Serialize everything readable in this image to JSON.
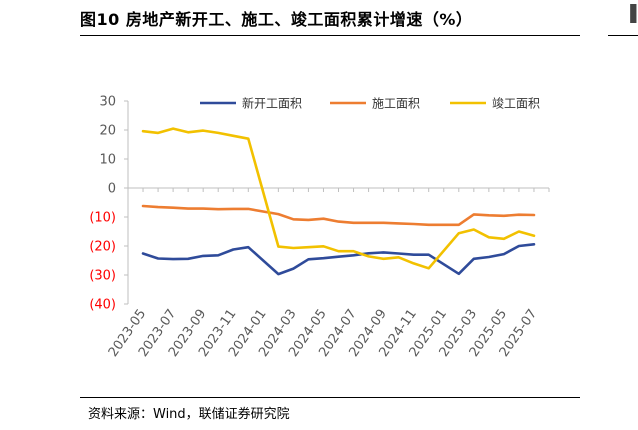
{
  "figure": {
    "title": "图10 房地产新开工、施工、竣工面积累计增速（%）",
    "source": "资料来源：Wind，联储证券研究院"
  },
  "chart_data": {
    "type": "line",
    "x": [
      "2023-05",
      "2023-06",
      "2023-07",
      "2023-08",
      "2023-09",
      "2023-10",
      "2023-11",
      "2023-12",
      "2024-02",
      "2024-03",
      "2024-04",
      "2024-05",
      "2024-06",
      "2024-07",
      "2024-08",
      "2024-09",
      "2024-10",
      "2024-11",
      "2024-12",
      "2025-02",
      "2025-03",
      "2025-04",
      "2025-05",
      "2025-06",
      "2025-07"
    ],
    "x_tick_labels": [
      "2023-05",
      "2023-07",
      "2023-09",
      "2023-11",
      "2024-01",
      "2024-03",
      "2024-05",
      "2024-07",
      "2024-09",
      "2024-11",
      "2025-01",
      "2025-03",
      "2025-05",
      "2025-07"
    ],
    "y_tick_labels": [
      "30",
      "20",
      "10",
      "0",
      "(10)",
      "(20)",
      "(30)",
      "(40)"
    ],
    "y_tick_values": [
      30,
      20,
      10,
      0,
      -10,
      -20,
      -30,
      -40
    ],
    "ylim": [
      -40,
      30
    ],
    "xlabel": "",
    "ylabel": "",
    "grid": false,
    "legend_position": "top",
    "negative_tick_color": "#FF0000",
    "positive_tick_color": "#595959",
    "series": [
      {
        "name": "新开工面积",
        "color": "#2F4B9A",
        "values": [
          -22.6,
          -24.3,
          -24.5,
          -24.4,
          -23.4,
          -23.2,
          -21.2,
          -20.4,
          -29.7,
          -27.8,
          -24.6,
          -24.2,
          -23.7,
          -23.2,
          -22.5,
          -22.2,
          -22.6,
          -23.0,
          -23.0,
          -29.6,
          -24.4,
          -23.8,
          -22.8,
          -20.0,
          -19.4
        ]
      },
      {
        "name": "施工面积",
        "color": "#ED7D31",
        "values": [
          -6.2,
          -6.6,
          -6.8,
          -7.1,
          -7.1,
          -7.3,
          -7.2,
          -7.2,
          -9.0,
          -10.8,
          -11.0,
          -10.6,
          -11.6,
          -12.0,
          -12.0,
          -12.0,
          -12.2,
          -12.4,
          -12.7,
          -12.7,
          -9.1,
          -9.4,
          -9.6,
          -9.2,
          -9.3
        ]
      },
      {
        "name": "竣工面积",
        "color": "#F2C100",
        "values": [
          19.6,
          19.0,
          20.5,
          19.2,
          19.8,
          19.0,
          18.0,
          17.0,
          -20.2,
          -20.7,
          -20.4,
          -20.1,
          -21.8,
          -21.8,
          -23.6,
          -24.4,
          -23.9,
          -26.0,
          -27.7,
          -15.6,
          -14.3,
          -17.0,
          -17.5,
          -15.0,
          -16.5
        ]
      }
    ]
  }
}
